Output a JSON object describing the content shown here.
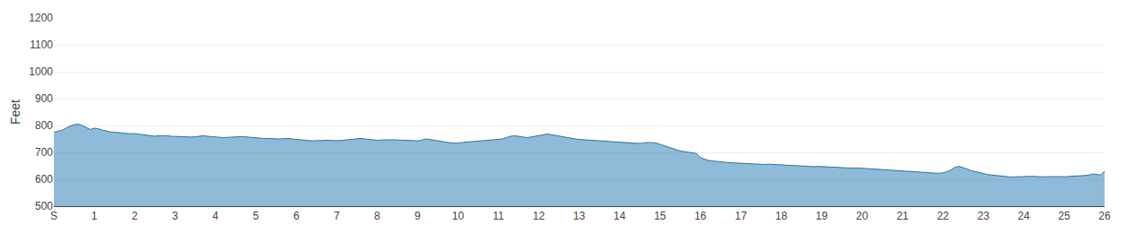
{
  "chart_data": {
    "type": "area",
    "ylabel": "Feet",
    "x": [
      0.0,
      0.1,
      0.2,
      0.3,
      0.4,
      0.5,
      0.6,
      0.7,
      0.8,
      0.9,
      1.0,
      1.1,
      1.2,
      1.3,
      1.4,
      1.5,
      1.6,
      1.7,
      1.8,
      1.9,
      2.0,
      2.1,
      2.2,
      2.3,
      2.4,
      2.5,
      2.6,
      2.7,
      2.8,
      2.9,
      3.0,
      3.1,
      3.2,
      3.3,
      3.4,
      3.5,
      3.6,
      3.7,
      3.8,
      3.9,
      4.0,
      4.1,
      4.2,
      4.3,
      4.4,
      4.5,
      4.6,
      4.7,
      4.8,
      4.9,
      5.0,
      5.1,
      5.2,
      5.3,
      5.4,
      5.5,
      5.6,
      5.7,
      5.8,
      5.9,
      6.0,
      6.1,
      6.2,
      6.3,
      6.4,
      6.5,
      6.6,
      6.7,
      6.8,
      6.9,
      7.0,
      7.1,
      7.2,
      7.3,
      7.4,
      7.5,
      7.6,
      7.7,
      7.8,
      7.9,
      8.0,
      8.1,
      8.2,
      8.3,
      8.4,
      8.5,
      8.6,
      8.7,
      8.8,
      8.9,
      9.0,
      9.1,
      9.2,
      9.3,
      9.4,
      9.5,
      9.6,
      9.7,
      9.8,
      9.9,
      10.0,
      10.1,
      10.2,
      10.3,
      10.4,
      10.5,
      10.6,
      10.7,
      10.8,
      10.9,
      11.0,
      11.1,
      11.2,
      11.3,
      11.4,
      11.5,
      11.6,
      11.7,
      11.8,
      11.9,
      12.0,
      12.1,
      12.2,
      12.3,
      12.4,
      12.5,
      12.6,
      12.7,
      12.8,
      12.9,
      13.0,
      13.1,
      13.2,
      13.3,
      13.4,
      13.5,
      13.6,
      13.7,
      13.8,
      13.9,
      14.0,
      14.1,
      14.2,
      14.3,
      14.4,
      14.5,
      14.6,
      14.7,
      14.8,
      14.9,
      15.0,
      15.1,
      15.2,
      15.3,
      15.4,
      15.5,
      15.6,
      15.7,
      15.8,
      15.9,
      16.0,
      16.1,
      16.2,
      16.3,
      16.4,
      16.5,
      16.6,
      16.7,
      16.8,
      16.9,
      17.0,
      17.1,
      17.2,
      17.3,
      17.4,
      17.5,
      17.6,
      17.7,
      17.8,
      17.9,
      18.0,
      18.1,
      18.2,
      18.3,
      18.4,
      18.5,
      18.6,
      18.7,
      18.8,
      18.9,
      19.0,
      19.1,
      19.2,
      19.3,
      19.4,
      19.5,
      19.6,
      19.7,
      19.8,
      19.9,
      20.0,
      20.1,
      20.2,
      20.3,
      20.4,
      20.5,
      20.6,
      20.7,
      20.8,
      20.9,
      21.0,
      21.1,
      21.2,
      21.3,
      21.4,
      21.5,
      21.6,
      21.7,
      21.8,
      21.9,
      22.0,
      22.1,
      22.2,
      22.3,
      22.4,
      22.5,
      22.6,
      22.7,
      22.8,
      22.9,
      23.0,
      23.1,
      23.2,
      23.3,
      23.4,
      23.5,
      23.6,
      23.7,
      23.8,
      23.9,
      24.0,
      24.1,
      24.2,
      24.3,
      24.4,
      24.5,
      24.6,
      24.7,
      24.8,
      24.9,
      25.0,
      25.1,
      25.2,
      25.3,
      25.4,
      25.5,
      25.6,
      25.7,
      25.8,
      25.9,
      26.0
    ],
    "values": [
      775,
      778,
      782,
      790,
      798,
      803,
      805,
      800,
      793,
      785,
      790,
      788,
      783,
      779,
      776,
      775,
      773,
      771,
      770,
      769,
      770,
      768,
      766,
      764,
      762,
      760,
      762,
      763,
      762,
      760,
      759,
      758,
      757,
      756,
      757,
      758,
      760,
      762,
      760,
      758,
      757,
      756,
      755,
      756,
      757,
      758,
      760,
      759,
      757,
      755,
      754,
      753,
      752,
      751,
      750,
      749,
      750,
      751,
      752,
      750,
      748,
      746,
      745,
      744,
      743,
      744,
      745,
      746,
      745,
      744,
      743,
      744,
      746,
      748,
      750,
      751,
      752,
      750,
      748,
      746,
      745,
      746,
      747,
      748,
      747,
      746,
      745,
      744,
      743,
      742,
      743,
      745,
      750,
      748,
      745,
      742,
      740,
      738,
      736,
      734,
      735,
      737,
      739,
      740,
      741,
      742,
      743,
      744,
      745,
      746,
      748,
      750,
      755,
      760,
      762,
      760,
      757,
      755,
      757,
      760,
      762,
      765,
      768,
      766,
      763,
      760,
      757,
      754,
      752,
      750,
      748,
      747,
      746,
      745,
      744,
      743,
      742,
      741,
      740,
      739,
      738,
      737,
      736,
      735,
      734,
      733,
      735,
      737,
      736,
      735,
      730,
      725,
      720,
      715,
      710,
      705,
      703,
      700,
      698,
      696,
      680,
      675,
      670,
      668,
      666,
      664,
      663,
      662,
      661,
      660,
      659,
      658,
      657,
      656,
      655,
      654,
      655,
      656,
      655,
      654,
      653,
      652,
      651,
      650,
      649,
      648,
      647,
      646,
      647,
      648,
      647,
      646,
      645,
      644,
      643,
      642,
      641,
      640,
      641,
      642,
      641,
      640,
      639,
      638,
      637,
      636,
      635,
      634,
      633,
      632,
      631,
      630,
      629,
      628,
      627,
      626,
      625,
      624,
      623,
      622,
      624,
      628,
      635,
      645,
      648,
      644,
      638,
      632,
      628,
      624,
      620,
      618,
      616,
      614,
      612,
      610,
      609,
      608,
      609,
      610,
      611,
      612,
      611,
      610,
      609,
      608,
      609,
      610,
      611,
      610,
      609,
      610,
      611,
      612,
      613,
      614,
      615,
      620,
      618,
      616,
      630
    ],
    "xlim": [
      0,
      26
    ],
    "xticks": [
      {
        "value": 0,
        "label": "S"
      },
      1,
      2,
      3,
      4,
      5,
      6,
      7,
      8,
      9,
      10,
      11,
      12,
      13,
      14,
      15,
      16,
      17,
      18,
      19,
      20,
      21,
      22,
      23,
      24,
      25,
      26
    ],
    "ylim": [
      500,
      1200
    ],
    "yticks": [
      500,
      600,
      700,
      800,
      900,
      1000,
      1100,
      1200
    ],
    "grid": "y"
  }
}
